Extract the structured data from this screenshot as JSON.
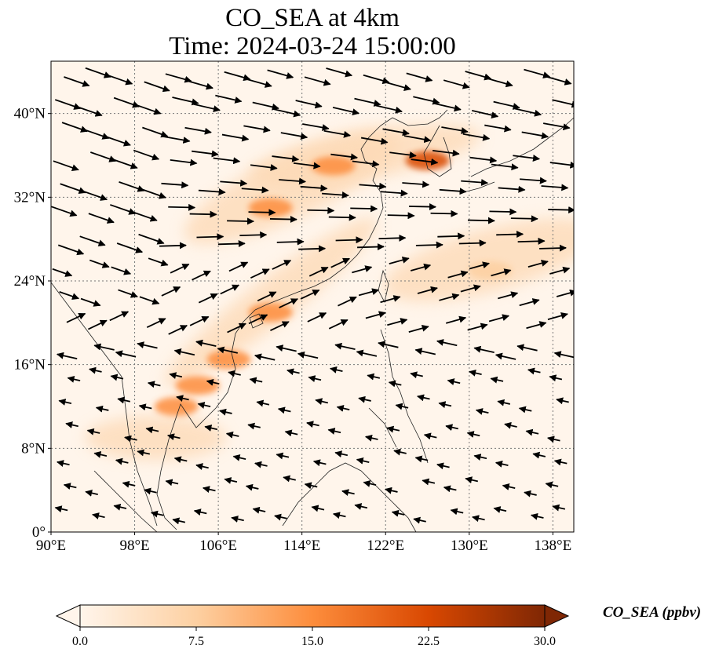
{
  "title": {
    "line1": "CO_SEA at 4km",
    "line2": "Time: 2024-03-24 15:00:00"
  },
  "map": {
    "x_axis": {
      "range": [
        90,
        140
      ],
      "ticks": [
        90,
        98,
        106,
        114,
        122,
        130,
        138
      ],
      "tick_labels": [
        "90°E",
        "98°E",
        "106°E",
        "114°E",
        "122°E",
        "130°E",
        "138°E"
      ]
    },
    "y_axis": {
      "range": [
        0,
        45
      ],
      "ticks": [
        0,
        8,
        16,
        24,
        32,
        40
      ],
      "tick_labels": [
        "0°",
        "8°N",
        "16°N",
        "24°N",
        "32°N",
        "40°N"
      ]
    },
    "grid": "dotted",
    "field": "CO_SEA concentration with wind vectors",
    "high_concentration_regions": [
      {
        "name": "northern China plume",
        "center": [
          117,
          35
        ],
        "value": 18
      },
      {
        "name": "Korea plume",
        "center": [
          126,
          35.5
        ],
        "value": 20
      },
      {
        "name": "central China plume",
        "center": [
          111,
          31
        ],
        "value": 16
      },
      {
        "name": "south China plume",
        "center": [
          111,
          21
        ],
        "value": 16
      },
      {
        "name": "Vietnam plume",
        "center": [
          107,
          16.5
        ],
        "value": 17
      },
      {
        "name": "Cambodia plume",
        "center": [
          104,
          14
        ],
        "value": 15
      },
      {
        "name": "Thailand plume",
        "center": [
          102,
          12
        ],
        "value": 16
      },
      {
        "name": "Pacific outflow band",
        "center": [
          132,
          25
        ],
        "value": 5
      }
    ]
  },
  "colorbar": {
    "min": 0.0,
    "max": 30.0,
    "extend": "both",
    "ticks": [
      "0.0",
      "7.5",
      "15.0",
      "22.5",
      "30.0"
    ],
    "label": "CO_SEA (ppbv)",
    "colormap": [
      "#fff5eb",
      "#fdd0a2",
      "#fd8d3c",
      "#d94801",
      "#7f2704"
    ]
  }
}
